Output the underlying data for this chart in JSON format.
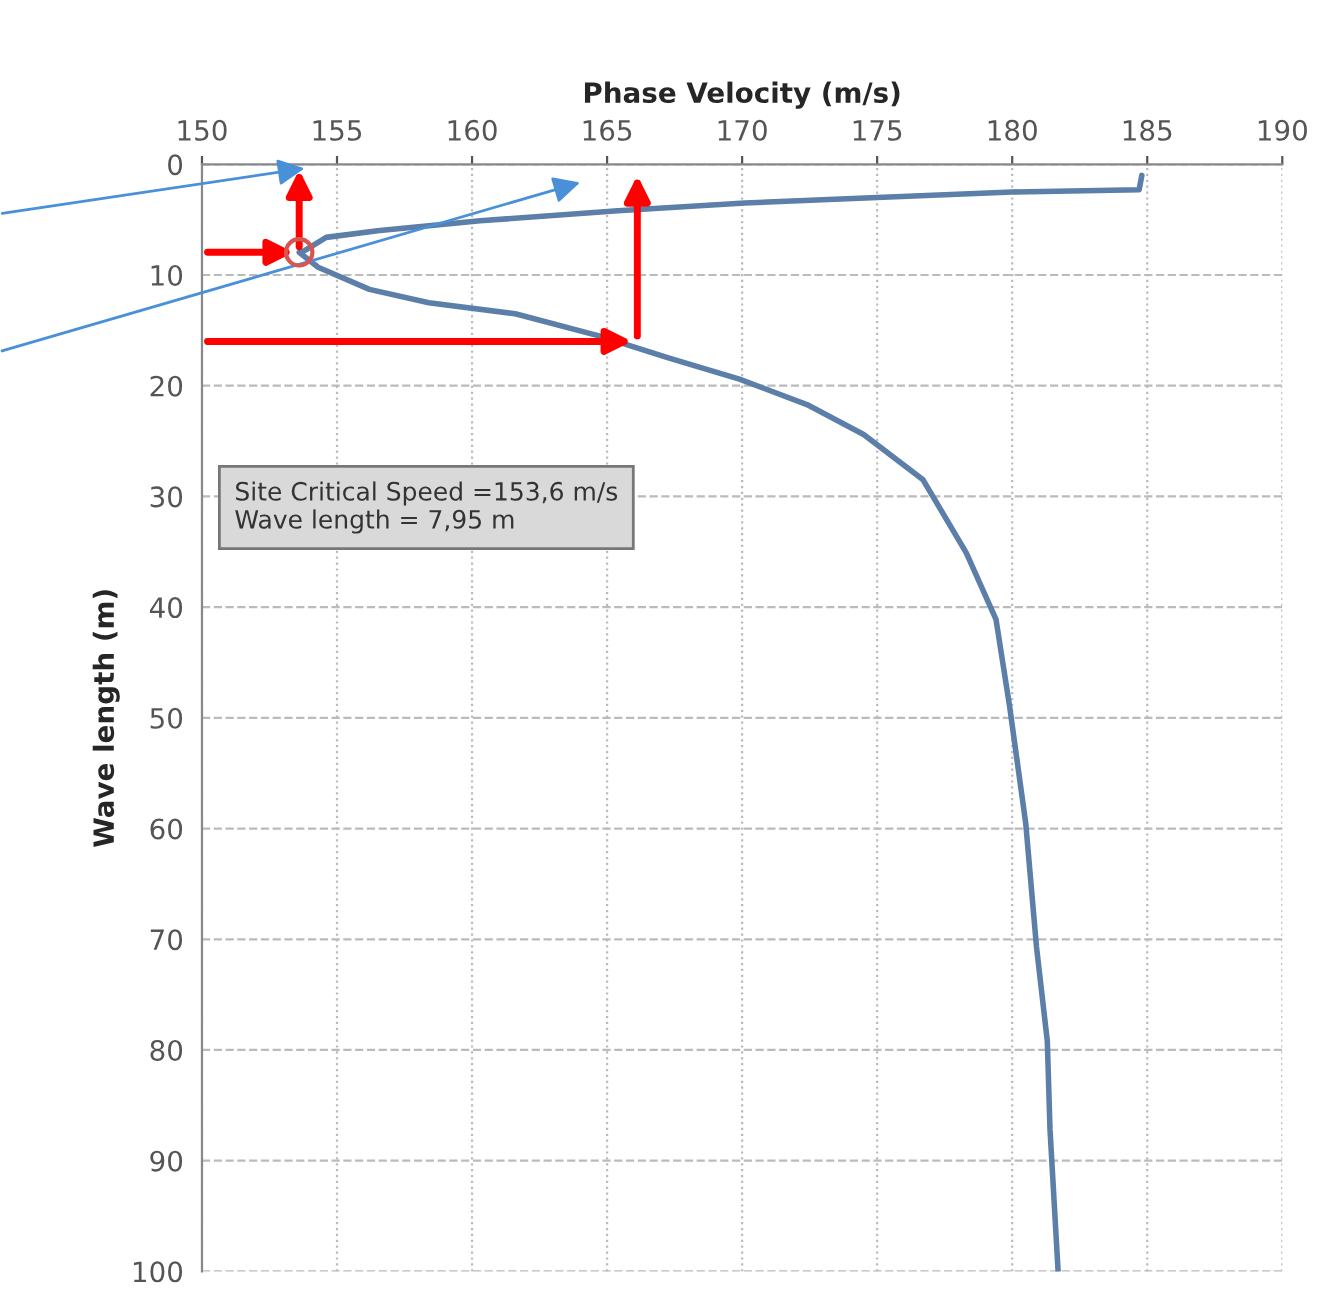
{
  "chart_data": {
    "type": "line",
    "xlabel": "Phase Velocity (m/s)",
    "ylabel": "Wave length (m)",
    "xlim": [
      150,
      190
    ],
    "xticks": [
      150,
      155,
      160,
      165,
      170,
      175,
      180,
      185,
      190
    ],
    "ylim": [
      100,
      0
    ],
    "yticks": [
      0,
      10,
      20,
      30,
      40,
      50,
      60,
      70,
      80,
      90,
      100
    ],
    "grid": true,
    "marker": "none",
    "line_style": "solid",
    "annotations": [
      "Site Critical Speed =153,6 m/s\nWave length = 7,95 m"
    ],
    "series": [
      {
        "color": "#5b7fa8",
        "x": [
          184.8,
          184.7,
          180.0,
          175.0,
          170.1,
          165.4,
          160.3,
          156.5,
          154.6,
          153.8,
          153.6,
          154.3,
          156.2,
          158.4,
          161.6,
          164.7,
          167.3,
          169.9,
          172.4,
          174.5,
          176.7,
          178.3,
          179.4,
          179.9,
          180.5,
          180.9,
          181.3,
          181.4,
          181.7
        ],
        "values": [
          1.0,
          2.3,
          2.5,
          3.0,
          3.5,
          4.2,
          5.1,
          6.0,
          6.6,
          7.8,
          7.95,
          9.3,
          11.3,
          12.5,
          13.5,
          15.5,
          17.5,
          19.4,
          21.7,
          24.4,
          28.5,
          35.1,
          41.1,
          48.9,
          59.5,
          70.7,
          79.2,
          87.2,
          100.0
        ]
      },
      {
        "type": "scatter",
        "marker": "circle",
        "color": "#d9534f",
        "x": [
          153.6
        ],
        "values": [
          7.95
        ]
      }
    ]
  }
}
